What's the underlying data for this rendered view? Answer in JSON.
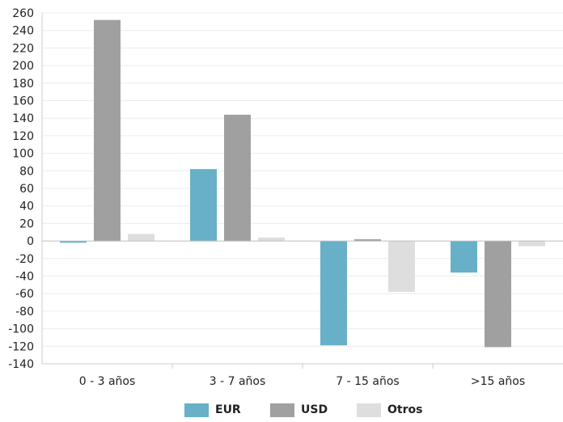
{
  "chart_data": {
    "type": "bar",
    "title": "",
    "xlabel": "",
    "ylabel": "",
    "categories": [
      "0 - 3 años",
      "3 - 7 años",
      "7 - 15 años",
      ">15 años"
    ],
    "series": [
      {
        "name": "EUR",
        "color": "#68b0c8",
        "values": [
          -2,
          82,
          -119,
          -36
        ]
      },
      {
        "name": "USD",
        "color": "#a0a0a0",
        "values": [
          252,
          144,
          2,
          -121
        ]
      },
      {
        "name": "Otros",
        "color": "#dedede",
        "values": [
          8,
          4,
          -58,
          -6
        ]
      }
    ],
    "ylim": [
      -140,
      260
    ],
    "ytick_step": 20,
    "grid": true,
    "legend_position": "bottom"
  }
}
